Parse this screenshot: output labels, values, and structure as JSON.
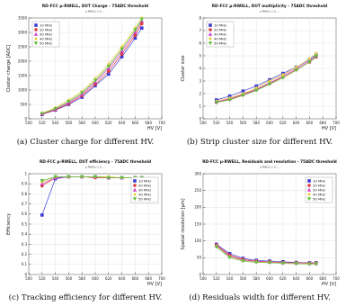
{
  "figure": {
    "captions": [
      "(a) Cluster charge for different HV.",
      "(b) Strip cluster size for different HV.",
      "(c) Tracking efficiency for different HV.",
      "(d) Residuals width for different HV."
    ]
  },
  "colors": {
    "series": [
      "#3b3bd6",
      "#d93a3a",
      "#d040c8",
      "#e8d040",
      "#60c040"
    ],
    "axis": "#333333",
    "grid": "#d9d9d9"
  },
  "chart_data": [
    {
      "type": "line",
      "title": "RD-FCC μ-RWELL, DUT Charge - 75ADC threshold",
      "subtitle": "μ-RWELL-1.0, ...",
      "xlabel": "HV [V]",
      "ylabel": "Cluster charge [ADC]",
      "xlim": [
        500,
        700
      ],
      "ylim": [
        0,
        3500
      ],
      "x_ticks": [
        500,
        520,
        540,
        560,
        580,
        600,
        620,
        640,
        660,
        680,
        700
      ],
      "y_ticks": [
        0,
        500,
        1000,
        1500,
        2000,
        2500,
        3000,
        3500
      ],
      "legend_position": "top-left",
      "grid": true,
      "series": [
        {
          "name": "10 MHz",
          "x": [
            520,
            540,
            560,
            580,
            600,
            620,
            640,
            660,
            670
          ],
          "y": [
            150,
            300,
            500,
            750,
            1150,
            1550,
            2150,
            2800,
            3150
          ]
        },
        {
          "name": "20 MHz",
          "x": [
            520,
            540,
            560,
            580,
            600,
            620,
            640,
            660,
            670
          ],
          "y": [
            160,
            310,
            520,
            800,
            1200,
            1650,
            2250,
            2900,
            3300
          ]
        },
        {
          "name": "30 MHz",
          "x": [
            520,
            540,
            560,
            580,
            600,
            620,
            640,
            660,
            670
          ],
          "y": [
            170,
            330,
            560,
            850,
            1280,
            1750,
            2350,
            3000,
            3400
          ]
        },
        {
          "name": "40 MHz",
          "x": [
            520,
            540,
            560,
            580,
            600,
            620,
            640,
            660,
            670
          ],
          "y": [
            200,
            380,
            650,
            950,
            1400,
            1900,
            2500,
            3150,
            3500
          ]
        },
        {
          "name": "50 MHz",
          "x": [
            520,
            540,
            560,
            580,
            600,
            620,
            640,
            660,
            670
          ],
          "y": [
            180,
            350,
            600,
            900,
            1330,
            1820,
            2420,
            3080,
            3450
          ]
        }
      ]
    },
    {
      "type": "line",
      "title": "RD-FCC μ-RWELL, DUT multiplicity - 75ADC threshold",
      "subtitle": "μ-RWELL-1.0, ...",
      "xlabel": "HV [V]",
      "ylabel": "Cluster size",
      "xlim": [
        500,
        700
      ],
      "ylim": [
        0,
        8
      ],
      "x_ticks": [
        500,
        520,
        540,
        560,
        580,
        600,
        620,
        640,
        660,
        680,
        700
      ],
      "y_ticks": [
        0,
        1,
        2,
        3,
        4,
        5,
        6,
        7,
        8
      ],
      "legend_position": "top-left",
      "grid": true,
      "series": [
        {
          "name": "10 MHz",
          "x": [
            520,
            540,
            560,
            580,
            600,
            620,
            640,
            660,
            670
          ],
          "y": [
            1.5,
            1.8,
            2.2,
            2.6,
            3.1,
            3.6,
            4.1,
            4.7,
            5.1
          ]
        },
        {
          "name": "20 MHz",
          "x": [
            520,
            540,
            560,
            580,
            600,
            620,
            640,
            660,
            670
          ],
          "y": [
            1.3,
            1.55,
            1.9,
            2.3,
            2.8,
            3.3,
            3.9,
            4.5,
            4.9
          ]
        },
        {
          "name": "30 MHz",
          "x": [
            520,
            540,
            560,
            580,
            600,
            620,
            640,
            660,
            670
          ],
          "y": [
            1.35,
            1.6,
            1.95,
            2.35,
            2.85,
            3.4,
            4.0,
            4.6,
            5.0
          ]
        },
        {
          "name": "40 MHz",
          "x": [
            520,
            540,
            560,
            580,
            600,
            620,
            640,
            660,
            670
          ],
          "y": [
            1.4,
            1.65,
            2.0,
            2.45,
            3.0,
            3.5,
            4.1,
            4.75,
            5.2
          ]
        },
        {
          "name": "50 MHz",
          "x": [
            520,
            540,
            560,
            580,
            600,
            620,
            640,
            660,
            670
          ],
          "y": [
            1.3,
            1.5,
            1.85,
            2.25,
            2.75,
            3.25,
            3.85,
            4.5,
            4.95
          ]
        }
      ]
    },
    {
      "type": "line",
      "title": "RD-FCC μ-RWELL, DUT efficiency - 75ADC threshold",
      "subtitle": "μ-RWELL-1.0, ...",
      "xlabel": "HV [V]",
      "ylabel": "Efficiency",
      "xlim": [
        500,
        700
      ],
      "ylim": [
        0,
        1
      ],
      "x_ticks": [
        500,
        520,
        540,
        560,
        580,
        600,
        620,
        640,
        660,
        680,
        700
      ],
      "y_ticks": [
        0,
        0.1,
        0.2,
        0.3,
        0.4,
        0.5,
        0.6,
        0.7,
        0.8,
        0.9,
        1.0
      ],
      "legend_position": "top-right",
      "grid": true,
      "series": [
        {
          "name": "10 MHz",
          "x": [
            520,
            540,
            560,
            580,
            600,
            620,
            640,
            660,
            670
          ],
          "y": [
            0.59,
            0.95,
            0.97,
            0.97,
            0.97,
            0.96,
            0.96,
            0.96,
            0.96
          ]
        },
        {
          "name": "20 MHz",
          "x": [
            520,
            540,
            560,
            580,
            600,
            620,
            640,
            660,
            670
          ],
          "y": [
            0.88,
            0.96,
            0.97,
            0.97,
            0.96,
            0.96,
            0.96,
            0.96,
            0.96
          ]
        },
        {
          "name": "30 MHz",
          "x": [
            520,
            540,
            560,
            580,
            600,
            620,
            640,
            660,
            670
          ],
          "y": [
            0.9,
            0.96,
            0.97,
            0.97,
            0.97,
            0.96,
            0.96,
            0.96,
            0.96
          ]
        },
        {
          "name": "40 MHz",
          "x": [
            520,
            540,
            560,
            580,
            600,
            620,
            640,
            660,
            670
          ],
          "y": [
            0.92,
            0.97,
            0.97,
            0.97,
            0.97,
            0.97,
            0.96,
            0.96,
            0.96
          ]
        },
        {
          "name": "50 MHz",
          "x": [
            520,
            540,
            560,
            580,
            600,
            620,
            640,
            660,
            670
          ],
          "y": [
            0.93,
            0.97,
            0.97,
            0.97,
            0.97,
            0.96,
            0.96,
            0.96,
            0.96
          ]
        }
      ]
    },
    {
      "type": "line",
      "title": "RD-FCC μ-RWELL, Residuals and resolution - 75ADC threshold",
      "subtitle": "μ-RWELL-1.0, ...",
      "xlabel": "HV [V]",
      "ylabel": "Spatial resolution [μm]",
      "xlim": [
        500,
        700
      ],
      "ylim": [
        0,
        300
      ],
      "x_ticks": [
        500,
        520,
        540,
        560,
        580,
        600,
        620,
        640,
        660,
        680,
        700
      ],
      "y_ticks": [
        0,
        50,
        100,
        150,
        200,
        250,
        300
      ],
      "legend_position": "top-right",
      "grid": true,
      "series": [
        {
          "name": "10 MHz",
          "x": [
            520,
            540,
            560,
            580,
            600,
            620,
            640,
            660,
            670
          ],
          "y": [
            90,
            62,
            48,
            42,
            40,
            38,
            36,
            35,
            35
          ]
        },
        {
          "name": "20 MHz",
          "x": [
            520,
            540,
            560,
            580,
            600,
            620,
            640,
            660,
            670
          ],
          "y": [
            88,
            58,
            45,
            40,
            38,
            36,
            35,
            34,
            34
          ]
        },
        {
          "name": "30 MHz",
          "x": [
            520,
            540,
            560,
            580,
            600,
            620,
            640,
            660,
            670
          ],
          "y": [
            86,
            55,
            43,
            39,
            37,
            35,
            34,
            33,
            33
          ]
        },
        {
          "name": "40 MHz",
          "x": [
            520,
            540,
            560,
            580,
            600,
            620,
            640,
            660,
            670
          ],
          "y": [
            84,
            52,
            41,
            37,
            36,
            34,
            33,
            32,
            32
          ]
        },
        {
          "name": "50 MHz",
          "x": [
            520,
            540,
            560,
            580,
            600,
            620,
            640,
            660,
            670
          ],
          "y": [
            82,
            50,
            40,
            36,
            35,
            33,
            32,
            31,
            31
          ]
        }
      ]
    }
  ]
}
